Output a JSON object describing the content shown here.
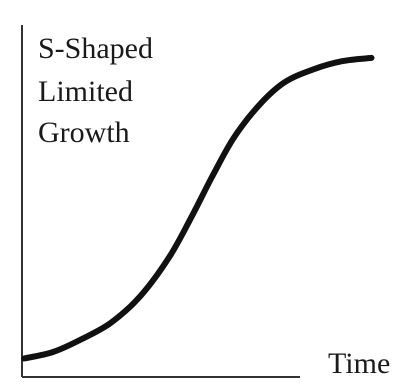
{
  "chart_data": {
    "type": "line",
    "title_lines": [
      "S-Shaped",
      "Limited",
      "Growth"
    ],
    "xlabel": "Time",
    "ylabel": "",
    "axis_ticks": false,
    "grid": false,
    "xlim": [
      0,
      1
    ],
    "ylim": [
      0,
      1
    ],
    "series": [
      {
        "values": [
          {
            "x": 0.0,
            "y": 0.02
          },
          {
            "x": 0.08,
            "y": 0.04
          },
          {
            "x": 0.16,
            "y": 0.08
          },
          {
            "x": 0.24,
            "y": 0.13
          },
          {
            "x": 0.32,
            "y": 0.21
          },
          {
            "x": 0.4,
            "y": 0.33
          },
          {
            "x": 0.46,
            "y": 0.45
          },
          {
            "x": 0.52,
            "y": 0.58
          },
          {
            "x": 0.58,
            "y": 0.7
          },
          {
            "x": 0.65,
            "y": 0.8
          },
          {
            "x": 0.72,
            "y": 0.87
          },
          {
            "x": 0.8,
            "y": 0.91
          },
          {
            "x": 0.88,
            "y": 0.935
          },
          {
            "x": 0.96,
            "y": 0.945
          }
        ]
      }
    ]
  }
}
